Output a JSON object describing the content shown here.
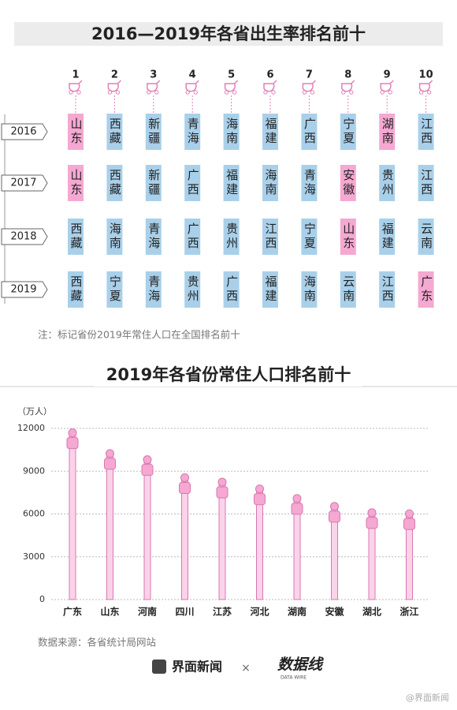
{
  "ranking": {
    "title": "2016—2019年各省出生率排名前十",
    "ranks": [
      1,
      2,
      3,
      4,
      5,
      6,
      7,
      8,
      9,
      10
    ],
    "normal_color": "#a9d0ea",
    "highlight_color": "#f5a8d2",
    "rows": [
      {
        "year": "2016",
        "provinces": [
          "山东",
          "西藏",
          "新疆",
          "青海",
          "海南",
          "福建",
          "广西",
          "宁夏",
          "湖南",
          "江西"
        ],
        "highlight": [
          true,
          false,
          false,
          false,
          false,
          false,
          false,
          false,
          true,
          false
        ]
      },
      {
        "year": "2017",
        "provinces": [
          "山东",
          "西藏",
          "新疆",
          "广西",
          "福建",
          "海南",
          "青海",
          "安徽",
          "贵州",
          "江西"
        ],
        "highlight": [
          true,
          false,
          false,
          false,
          false,
          false,
          false,
          true,
          false,
          false
        ]
      },
      {
        "year": "2018",
        "provinces": [
          "西藏",
          "海南",
          "青海",
          "广西",
          "贵州",
          "江西",
          "宁夏",
          "山东",
          "福建",
          "云南"
        ],
        "highlight": [
          false,
          false,
          false,
          false,
          false,
          false,
          false,
          true,
          false,
          false
        ]
      },
      {
        "year": "2019",
        "provinces": [
          "西藏",
          "宁夏",
          "青海",
          "贵州",
          "广西",
          "福建",
          "海南",
          "云南",
          "江西",
          "广东"
        ],
        "highlight": [
          false,
          false,
          false,
          false,
          false,
          false,
          false,
          false,
          false,
          true
        ]
      }
    ],
    "note": "注：标记省份2019年常住人口在全国排名前十"
  },
  "chart_data": {
    "type": "bar",
    "title": "2019年各省份常住人口排名前十",
    "y_label": "（万人）",
    "categories": [
      "广东",
      "山东",
      "河南",
      "四川",
      "江苏",
      "河北",
      "湖南",
      "安徽",
      "湖北",
      "浙江"
    ],
    "values": [
      11521,
      10070,
      9640,
      8375,
      8070,
      7592,
      6918,
      6366,
      5927,
      5850
    ],
    "color": "#f5a8d2",
    "ylim": [
      0,
      12000
    ],
    "yticks": [
      0,
      3000,
      6000,
      9000,
      12000
    ],
    "grid": true,
    "source": "数据来源：各省统计局网站"
  },
  "footer": {
    "brand": "界面新闻",
    "times": "×",
    "logo": "数据线",
    "logo_sub": "DATA WIRE",
    "watermark": "@界面新闻"
  }
}
